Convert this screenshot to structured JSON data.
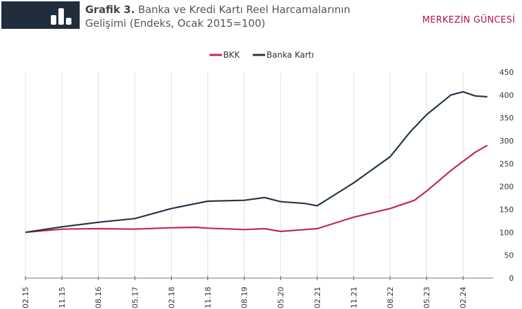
{
  "header": {
    "title_bold": "Grafik 3.",
    "title_rest": "Banka ve Kredi Kartı Reel Harcamalarının",
    "title_line2": "Gelişimi (Endeks, Ocak 2015=100)",
    "brand": "MERKEZİN GÜNCESİ",
    "icon": "bar-chart-icon"
  },
  "chart_data": {
    "type": "line",
    "title": "Grafik 3. Banka ve Kredi Kartı Reel Harcamalarının Gelişimi (Endeks, Ocak 2015=100)",
    "xlabel": "",
    "ylabel": "",
    "ylim": [
      0,
      450
    ],
    "yticks": [
      0,
      50,
      100,
      150,
      200,
      250,
      300,
      350,
      400,
      450
    ],
    "xticks": [
      "02.15",
      "11.15",
      "08.16",
      "05.17",
      "02.18",
      "11.18",
      "08.19",
      "05.20",
      "02.21",
      "11.21",
      "08.22",
      "05.23",
      "02.24"
    ],
    "grid": "vertical",
    "legend": "top",
    "series": [
      {
        "name": "BKK",
        "color": "#c0284f",
        "points": [
          [
            "2015-02",
            100
          ],
          [
            "2015-11",
            107
          ],
          [
            "2016-08",
            108
          ],
          [
            "2017-05",
            107
          ],
          [
            "2018-02",
            110
          ],
          [
            "2018-08",
            111
          ],
          [
            "2018-11",
            109
          ],
          [
            "2019-08",
            106
          ],
          [
            "2020-01",
            108
          ],
          [
            "2020-05",
            102
          ],
          [
            "2020-11",
            106
          ],
          [
            "2021-02",
            108
          ],
          [
            "2021-11",
            133
          ],
          [
            "2022-08",
            152
          ],
          [
            "2023-02",
            170
          ],
          [
            "2023-05",
            190
          ],
          [
            "2023-11",
            235
          ],
          [
            "2024-02",
            255
          ],
          [
            "2024-05",
            275
          ],
          [
            "2024-08",
            290
          ]
        ]
      },
      {
        "name": "Banka Kartı",
        "color": "#253545",
        "points": [
          [
            "2015-02",
            100
          ],
          [
            "2015-11",
            112
          ],
          [
            "2016-08",
            122
          ],
          [
            "2017-05",
            130
          ],
          [
            "2018-02",
            152
          ],
          [
            "2018-11",
            168
          ],
          [
            "2019-08",
            170
          ],
          [
            "2020-01",
            176
          ],
          [
            "2020-05",
            167
          ],
          [
            "2020-11",
            163
          ],
          [
            "2021-02",
            158
          ],
          [
            "2021-11",
            208
          ],
          [
            "2022-08",
            265
          ],
          [
            "2023-01",
            320
          ],
          [
            "2023-05",
            357
          ],
          [
            "2023-11",
            400
          ],
          [
            "2024-02",
            407
          ],
          [
            "2024-05",
            398
          ],
          [
            "2024-08",
            396
          ]
        ]
      }
    ]
  }
}
